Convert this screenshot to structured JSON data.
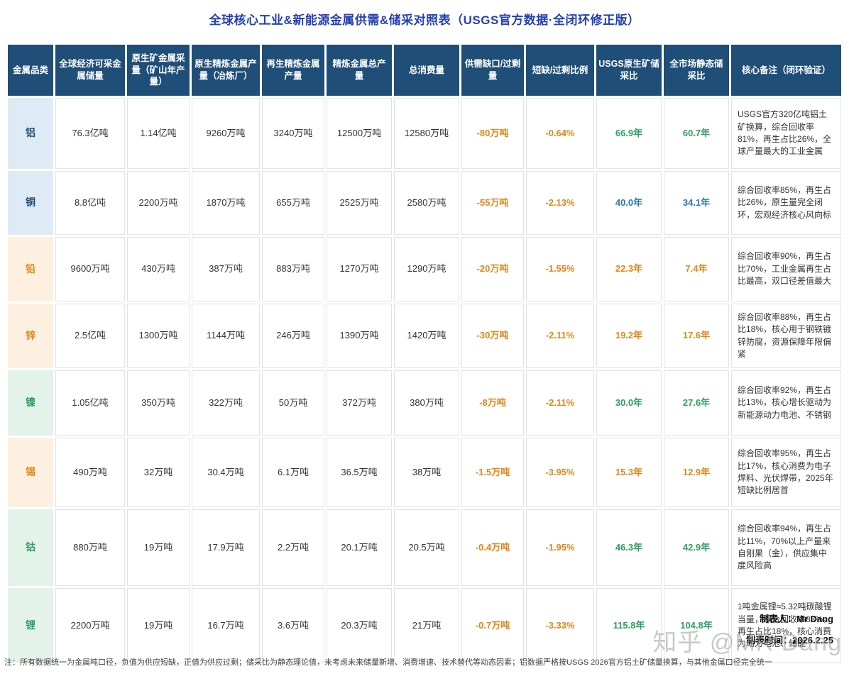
{
  "title": "全球核心工业&新能源金属供需&储采对照表（USGS官方数据·全闭环修正版）",
  "colors": {
    "title_text": "#2440b3",
    "header_bg": "#1f4e79",
    "value_orange": "#e0861a",
    "value_green": "#2f9e5e",
    "value_blue": "#2e75b6",
    "label_bg_blue": "#deebf7",
    "label_text_blue": "#1f4e79",
    "label_bg_orange": "#fdf0e0",
    "label_text_orange": "#e0861a",
    "label_bg_green": "#e4f3ea",
    "label_text_green": "#2f9e5e"
  },
  "chart_data": {
    "type": "table",
    "title": "全球核心工业&新能源金属供需&储采对照表（USGS官方数据·全闭环修正版）",
    "columns": [
      "金属品类",
      "全球经济可采金属储量",
      "原生矿金属采量（矿山年产量）",
      "原生精炼金属产量（冶炼厂）",
      "再生精炼金属产量",
      "精炼金属总产量",
      "总消费量",
      "供需缺口/过剩量",
      "短缺/过剩比例",
      "USGS原生矿储采比",
      "全市场静态储采比",
      "核心备注（闭环验证）"
    ],
    "rows": [
      {
        "metal": "铝",
        "label_theme": "blue",
        "sr_color": "green",
        "reserves": "76.3亿吨",
        "mine_output": "1.14亿吨",
        "primary_refined": "9260万吨",
        "recycled_refined": "3240万吨",
        "total_refined": "12500万吨",
        "consumption": "12580万吨",
        "gap": "-80万吨",
        "gap_ratio": "-0.64%",
        "usgs_sr": "66.9年",
        "market_sr": "60.7年",
        "note": "USGS官方320亿吨铝土矿换算，综合回收率81%，再生占比26%，全球产量最大的工业金属"
      },
      {
        "metal": "铜",
        "label_theme": "blue",
        "sr_color": "blue",
        "reserves": "8.8亿吨",
        "mine_output": "2200万吨",
        "primary_refined": "1870万吨",
        "recycled_refined": "655万吨",
        "total_refined": "2525万吨",
        "consumption": "2580万吨",
        "gap": "-55万吨",
        "gap_ratio": "-2.13%",
        "usgs_sr": "40.0年",
        "market_sr": "34.1年",
        "note": "综合回收率85%，再生占比26%，原生量完全闭环，宏观经济核心风向标"
      },
      {
        "metal": "铅",
        "label_theme": "orange",
        "sr_color": "orange",
        "reserves": "9600万吨",
        "mine_output": "430万吨",
        "primary_refined": "387万吨",
        "recycled_refined": "883万吨",
        "total_refined": "1270万吨",
        "consumption": "1290万吨",
        "gap": "-20万吨",
        "gap_ratio": "-1.55%",
        "usgs_sr": "22.3年",
        "market_sr": "7.4年",
        "note": "综合回收率90%，再生占比70%，工业金属再生占比最高，双口径差值最大"
      },
      {
        "metal": "锌",
        "label_theme": "orange",
        "sr_color": "orange",
        "reserves": "2.5亿吨",
        "mine_output": "1300万吨",
        "primary_refined": "1144万吨",
        "recycled_refined": "246万吨",
        "total_refined": "1390万吨",
        "consumption": "1420万吨",
        "gap": "-30万吨",
        "gap_ratio": "-2.11%",
        "usgs_sr": "19.2年",
        "market_sr": "17.6年",
        "note": "综合回收率88%，再生占比18%，核心用于钢铁镀锌防腐，资源保障年限偏紧"
      },
      {
        "metal": "镍",
        "label_theme": "green",
        "sr_color": "green",
        "reserves": "1.05亿吨",
        "mine_output": "350万吨",
        "primary_refined": "322万吨",
        "recycled_refined": "50万吨",
        "total_refined": "372万吨",
        "consumption": "380万吨",
        "gap": "-8万吨",
        "gap_ratio": "-2.11%",
        "usgs_sr": "30.0年",
        "market_sr": "27.6年",
        "note": "综合回收率92%，再生占比13%，核心增长驱动为新能源动力电池、不锈钢"
      },
      {
        "metal": "锡",
        "label_theme": "orange",
        "sr_color": "orange",
        "reserves": "490万吨",
        "mine_output": "32万吨",
        "primary_refined": "30.4万吨",
        "recycled_refined": "6.1万吨",
        "total_refined": "36.5万吨",
        "consumption": "38万吨",
        "gap": "-1.5万吨",
        "gap_ratio": "-3.95%",
        "usgs_sr": "15.3年",
        "market_sr": "12.9年",
        "note": "综合回收率95%，再生占比17%，核心消费为电子焊料、光伏焊带，2025年短缺比例居首"
      },
      {
        "metal": "钴",
        "label_theme": "green",
        "sr_color": "green",
        "reserves": "880万吨",
        "mine_output": "19万吨",
        "primary_refined": "17.9万吨",
        "recycled_refined": "2.2万吨",
        "total_refined": "20.1万吨",
        "consumption": "20.5万吨",
        "gap": "-0.4万吨",
        "gap_ratio": "-1.95%",
        "usgs_sr": "46.3年",
        "market_sr": "42.9年",
        "note": "综合回收率94%，再生占比11%，70%以上产量来自刚果（金），供应集中度风险高"
      },
      {
        "metal": "锂",
        "label_theme": "green",
        "sr_color": "green",
        "reserves": "2200万吨",
        "mine_output": "19万吨",
        "primary_refined": "16.7万吨",
        "recycled_refined": "3.6万吨",
        "total_refined": "20.3万吨",
        "consumption": "21万吨",
        "gap": "-0.7万吨",
        "gap_ratio": "-3.33%",
        "usgs_sr": "115.8年",
        "market_sr": "104.8年",
        "note": "1吨金属锂≈5.32吨碳酸锂当量，综合回收率88%，再生占比18%，核心消费为动力电池、储能"
      }
    ]
  },
  "footer": {
    "author": "制表人：Mr Dang",
    "date": "制表时间：2026.2.25",
    "footnote": "注：所有数据统一为金属吨口径，负值为供应短缺，正值为供应过剩；储采比为静态理论值，未考虑未来储量新增、消费增速、技术替代等动态因素；铝数据严格按USGS 2026官方铝土矿储量换算，与其他金属口径完全统一"
  },
  "watermark": "知乎 @MR Dang"
}
